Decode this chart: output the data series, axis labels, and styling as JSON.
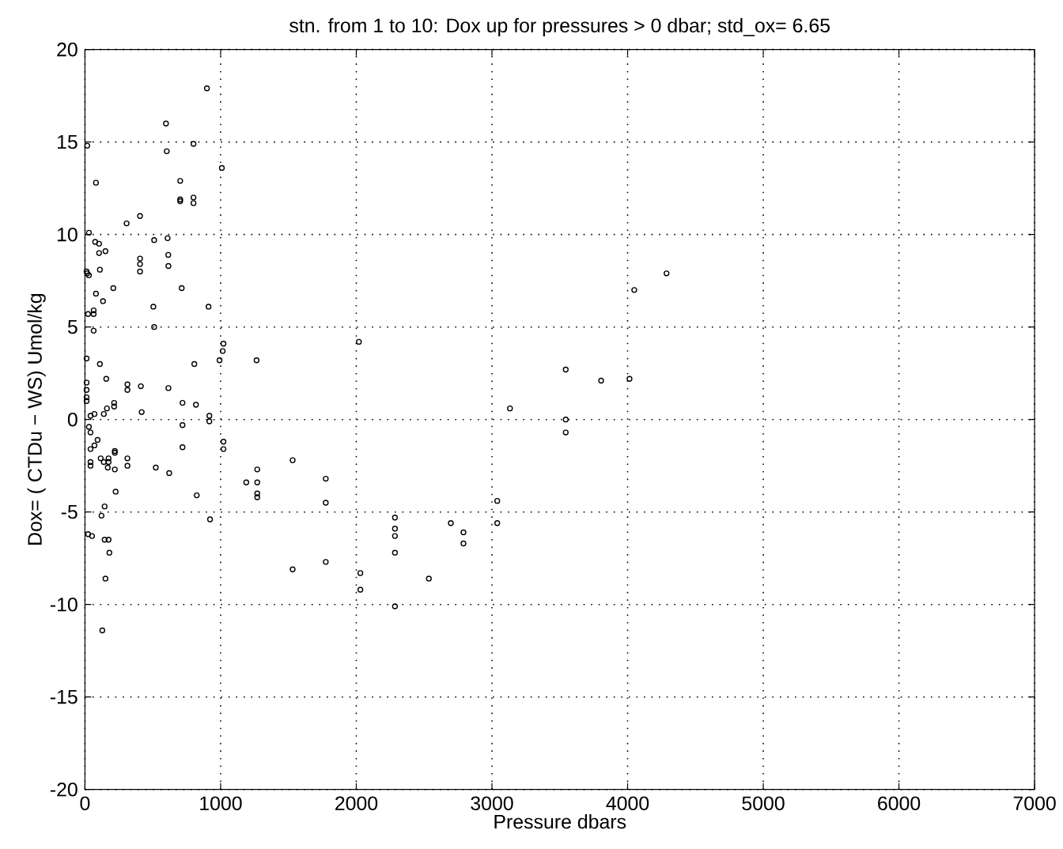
{
  "chart_data": {
    "type": "scatter",
    "title": "stn. from 1 to 10: Dox up for pressures > 0 dbar; std_ox= 6.65",
    "xlabel": "Pressure dbars",
    "ylabel": "Dox= ( CTDu − WS) Umol/kg",
    "xlim": [
      0,
      7000
    ],
    "ylim": [
      -20,
      20
    ],
    "xticks": [
      0,
      1000,
      2000,
      3000,
      4000,
      5000,
      6000,
      7000
    ],
    "yticks": [
      -20,
      -15,
      -10,
      -5,
      0,
      5,
      10,
      15,
      20
    ],
    "grid": true,
    "marker": "circle",
    "color": "#000000",
    "x": [
      899,
      597,
      17,
      603,
      800,
      1009,
      81,
      702,
      702,
      702,
      800,
      800,
      406,
      307,
      29,
      510,
      609,
      75,
      104,
      151,
      104,
      614,
      406,
      406,
      406,
      615,
      12,
      17,
      29,
      110,
      209,
      713,
      81,
      133,
      504,
      911,
      23,
      64,
      64,
      64,
      510,
      1021,
      1015,
      2019,
      1265,
      992,
      12,
      110,
      806,
      157,
      12,
      12,
      12,
      12,
      313,
      313,
      412,
      615,
      719,
      818,
      215,
      215,
      162,
      139,
      70,
      41,
      418,
      917,
      917,
      719,
      29,
      41,
      93,
      70,
      41,
      1021,
      1021,
      719,
      220,
      220,
      116,
      174,
      139,
      174,
      41,
      41,
      168,
      220,
      313,
      313,
      522,
      621,
      226,
      824,
      145,
      122,
      922,
      23,
      52,
      145,
      174,
      180,
      151,
      128,
      1189,
      1270,
      1270,
      1270,
      1270,
      1531,
      1531,
      1775,
      1775,
      1775,
      2030,
      2030,
      2285,
      2285,
      2285,
      2285,
      2285,
      2535,
      2697,
      2790,
      2790,
      3039,
      3039,
      3133,
      3544,
      3544,
      3544,
      3805,
      4014,
      4049,
      4287
    ],
    "values": [
      17.9,
      16.0,
      14.8,
      14.5,
      14.9,
      13.6,
      12.8,
      12.9,
      11.9,
      11.8,
      12.0,
      11.7,
      11.0,
      10.6,
      10.1,
      9.7,
      9.8,
      9.6,
      9.5,
      9.1,
      9.0,
      8.9,
      8.7,
      8.4,
      8.0,
      8.3,
      8.0,
      7.9,
      7.8,
      8.1,
      7.1,
      7.1,
      6.8,
      6.4,
      6.1,
      6.1,
      5.7,
      5.9,
      5.7,
      4.8,
      5.0,
      4.1,
      3.7,
      4.2,
      3.2,
      3.2,
      3.3,
      3.0,
      3.0,
      2.2,
      2.0,
      1.6,
      1.2,
      1.0,
      1.9,
      1.6,
      1.8,
      1.7,
      0.9,
      0.8,
      0.9,
      0.7,
      0.6,
      0.3,
      0.3,
      0.2,
      0.4,
      0.2,
      -0.1,
      -0.3,
      -0.4,
      -0.7,
      -1.1,
      -1.4,
      -1.6,
      -1.2,
      -1.6,
      -1.5,
      -1.7,
      -1.8,
      -2.1,
      -2.1,
      -2.3,
      -2.3,
      -2.3,
      -2.5,
      -2.6,
      -2.7,
      -2.1,
      -2.5,
      -2.6,
      -2.9,
      -3.9,
      -4.1,
      -4.7,
      -5.2,
      -5.4,
      -6.2,
      -6.3,
      -6.5,
      -6.5,
      -7.2,
      -8.6,
      -11.4,
      -3.4,
      -2.7,
      -3.4,
      -4.0,
      -4.2,
      -2.2,
      -8.1,
      -3.2,
      -4.5,
      -7.7,
      -8.3,
      -9.2,
      -5.3,
      -5.9,
      -6.3,
      -7.2,
      -10.1,
      -8.6,
      -5.6,
      -6.1,
      -6.7,
      -4.4,
      -5.6,
      0.6,
      2.7,
      0.0,
      -0.7,
      2.1,
      2.2,
      7.0,
      7.9
    ]
  }
}
